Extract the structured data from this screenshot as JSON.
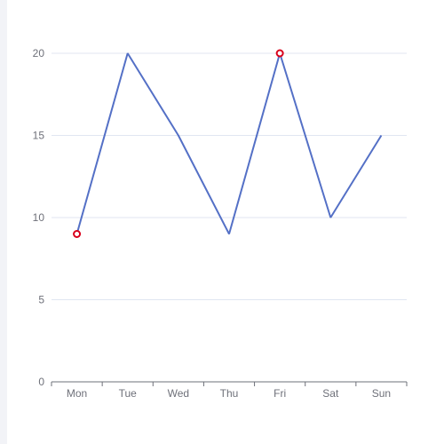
{
  "colors": {
    "line": "#5470c6",
    "highlight": "#d9001b",
    "grid": "#e0e6f1",
    "axis": "#6e7079",
    "label": "#6e7079",
    "side_strip": "#f2f3f7"
  },
  "chart_data": {
    "type": "line",
    "title": "",
    "xlabel": "",
    "ylabel": "",
    "categories": [
      "Mon",
      "Tue",
      "Wed",
      "Thu",
      "Fri",
      "Sat",
      "Sun"
    ],
    "series": [
      {
        "values": [
          9,
          20,
          15,
          9,
          20,
          10,
          15
        ]
      }
    ],
    "ylim": [
      0,
      20
    ],
    "yticks": [
      0,
      5,
      10,
      15,
      20
    ],
    "grid": true,
    "highlighted_points": [
      {
        "category": "Mon",
        "value": 9
      },
      {
        "category": "Fri",
        "value": 20
      }
    ]
  }
}
